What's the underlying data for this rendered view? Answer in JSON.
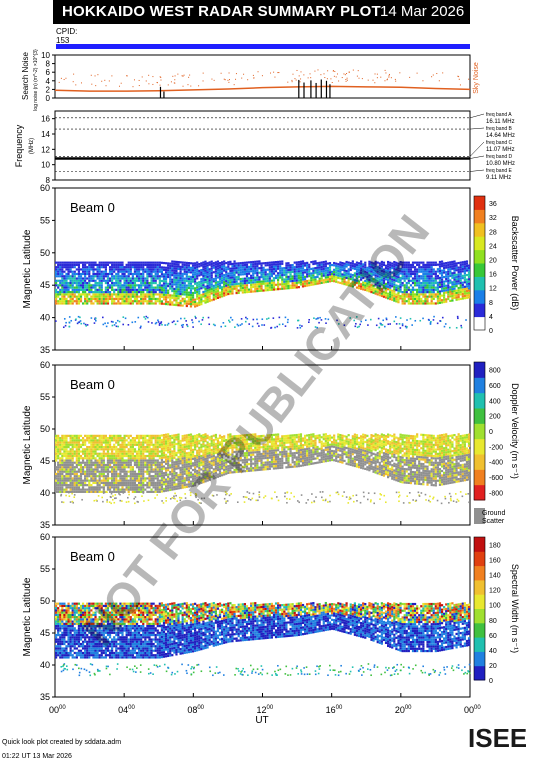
{
  "header": {
    "title": "HOKKAIDO WEST RADAR SUMMARY PLOT",
    "date": "14 Mar 2026",
    "cpid_label": "CPID:",
    "cpid_value": "153"
  },
  "footer": {
    "line1": "Quick look plot created by sddata.adm",
    "line2": "01:22 UT 13 Mar 2026"
  },
  "logo": {
    "text": "ISEE"
  },
  "watermark": "NOT FOR PUBLICATION",
  "colors": {
    "title_bg": "#000000",
    "cpid_bar": "#1f1fff",
    "sky_noise": "#e06020",
    "ground_scatter": "#909090",
    "logo_accent": "#2aa84a"
  },
  "chart_data": [
    {
      "type": "line",
      "panel": "search-noise",
      "ylabel": "Search Noise",
      "ylabel_units": "log noise (n) (m^-2) ×10^{3}",
      "ylim": [
        0,
        10
      ],
      "yticks": [
        0,
        2,
        4,
        6,
        8,
        10
      ],
      "legend": "Sky Noise",
      "series": [
        {
          "name": "Sky Noise",
          "x": [
            0,
            2,
            4,
            6,
            8,
            10,
            12,
            14,
            16,
            18,
            20,
            22,
            24
          ],
          "values": [
            1.8,
            1.6,
            1.6,
            1.7,
            1.9,
            2.1,
            2.4,
            2.6,
            2.7,
            2.6,
            2.5,
            2.2,
            2.0
          ]
        }
      ]
    },
    {
      "type": "line",
      "panel": "frequency",
      "ylabel": "Frequency",
      "ylabel_units": "(MHz)",
      "ylim": [
        8,
        17
      ],
      "yticks": [
        8,
        10,
        12,
        14,
        16
      ],
      "freq_bands": [
        {
          "label": "freq band A",
          "value": "16.11 MHz",
          "mhz": 16.11
        },
        {
          "label": "freq band B",
          "value": "14.64 MHz",
          "mhz": 14.64
        },
        {
          "label": "freq band C",
          "value": "11.07 MHz",
          "mhz": 11.07
        },
        {
          "label": "freq band D",
          "value": "10.80 MHz",
          "mhz": 10.8
        },
        {
          "label": "freq band E",
          "value": "9.11 MHz",
          "mhz": 9.11
        }
      ],
      "series": [
        {
          "name": "operating frequency",
          "x": [
            0,
            24
          ],
          "values": [
            10.8,
            10.8
          ]
        }
      ]
    },
    {
      "type": "heatmap",
      "panel": "backscatter-power",
      "beam_label": "Beam  0",
      "ylabel": "Magnetic Latitude",
      "ylim": [
        35,
        60
      ],
      "yticks": [
        35,
        40,
        45,
        50,
        55,
        60
      ],
      "colorbar_label": "Backscatter Power (dB)",
      "colorbar_ticks": [
        "0",
        "4",
        "8",
        "12",
        "16",
        "20",
        "24",
        "28",
        "32",
        "36"
      ],
      "colorbar_range": [
        0,
        38
      ],
      "echo_band": {
        "x": [
          0,
          2,
          4,
          6,
          8,
          10,
          12,
          14,
          16,
          18,
          20,
          22,
          24
        ],
        "lower": [
          42,
          42,
          42,
          42,
          41.5,
          43.5,
          44,
          44.5,
          45.5,
          44,
          42,
          42,
          43
        ],
        "upper": [
          48.5,
          48.5,
          48.5,
          48.5,
          48.5,
          48.5,
          48.5,
          48.5,
          48.5,
          48.5,
          48.5,
          48.5,
          48.5
        ]
      }
    },
    {
      "type": "heatmap",
      "panel": "doppler-velocity",
      "beam_label": "Beam  0",
      "ylabel": "Magnetic Latitude",
      "ylim": [
        35,
        60
      ],
      "yticks": [
        35,
        40,
        45,
        50,
        55,
        60
      ],
      "colorbar_label": "Doppler Velocity (m s⁻¹)",
      "colorbar_ticks": [
        "-800",
        "-600",
        "-400",
        "-200",
        "0",
        "200",
        "400",
        "600",
        "800"
      ],
      "colorbar_range": [
        -900,
        900
      ],
      "ground_label": "Ground Scatter",
      "echo_band": {
        "x": [
          0,
          2,
          4,
          6,
          8,
          10,
          12,
          14,
          16,
          18,
          20,
          22,
          24
        ],
        "lower": [
          40,
          40,
          40,
          40,
          41,
          43,
          43.5,
          44,
          45,
          43.5,
          41.5,
          41,
          42
        ],
        "upper": [
          49,
          49,
          49,
          49,
          49,
          49,
          49,
          49,
          49,
          49,
          49,
          49,
          49
        ]
      }
    },
    {
      "type": "heatmap",
      "panel": "spectral-width",
      "beam_label": "Beam  0",
      "ylabel": "Magnetic Latitude",
      "ylim": [
        35,
        60
      ],
      "yticks": [
        35,
        40,
        45,
        50,
        55,
        60
      ],
      "xlabel": "UT",
      "xticks": [
        "00",
        "04",
        "08",
        "12",
        "16",
        "20",
        "00"
      ],
      "xtick_sup": "00",
      "xlim": [
        0,
        24
      ],
      "colorbar_label": "Spectral Width (m s⁻¹)",
      "colorbar_ticks": [
        "0",
        "20",
        "40",
        "60",
        "80",
        "100",
        "120",
        "140",
        "160",
        "180"
      ],
      "colorbar_range": [
        0,
        190
      ],
      "echo_band": {
        "x": [
          0,
          2,
          4,
          6,
          8,
          10,
          12,
          14,
          16,
          18,
          20,
          22,
          24
        ],
        "lower": [
          41,
          41,
          41,
          41,
          42,
          43.5,
          44,
          44.5,
          45.5,
          44,
          42,
          42,
          43
        ],
        "upper": [
          49.5,
          49.5,
          49.5,
          49.5,
          49.5,
          49.5,
          49.5,
          49.5,
          49.5,
          49.5,
          49.5,
          49.5,
          49.5
        ]
      }
    }
  ]
}
